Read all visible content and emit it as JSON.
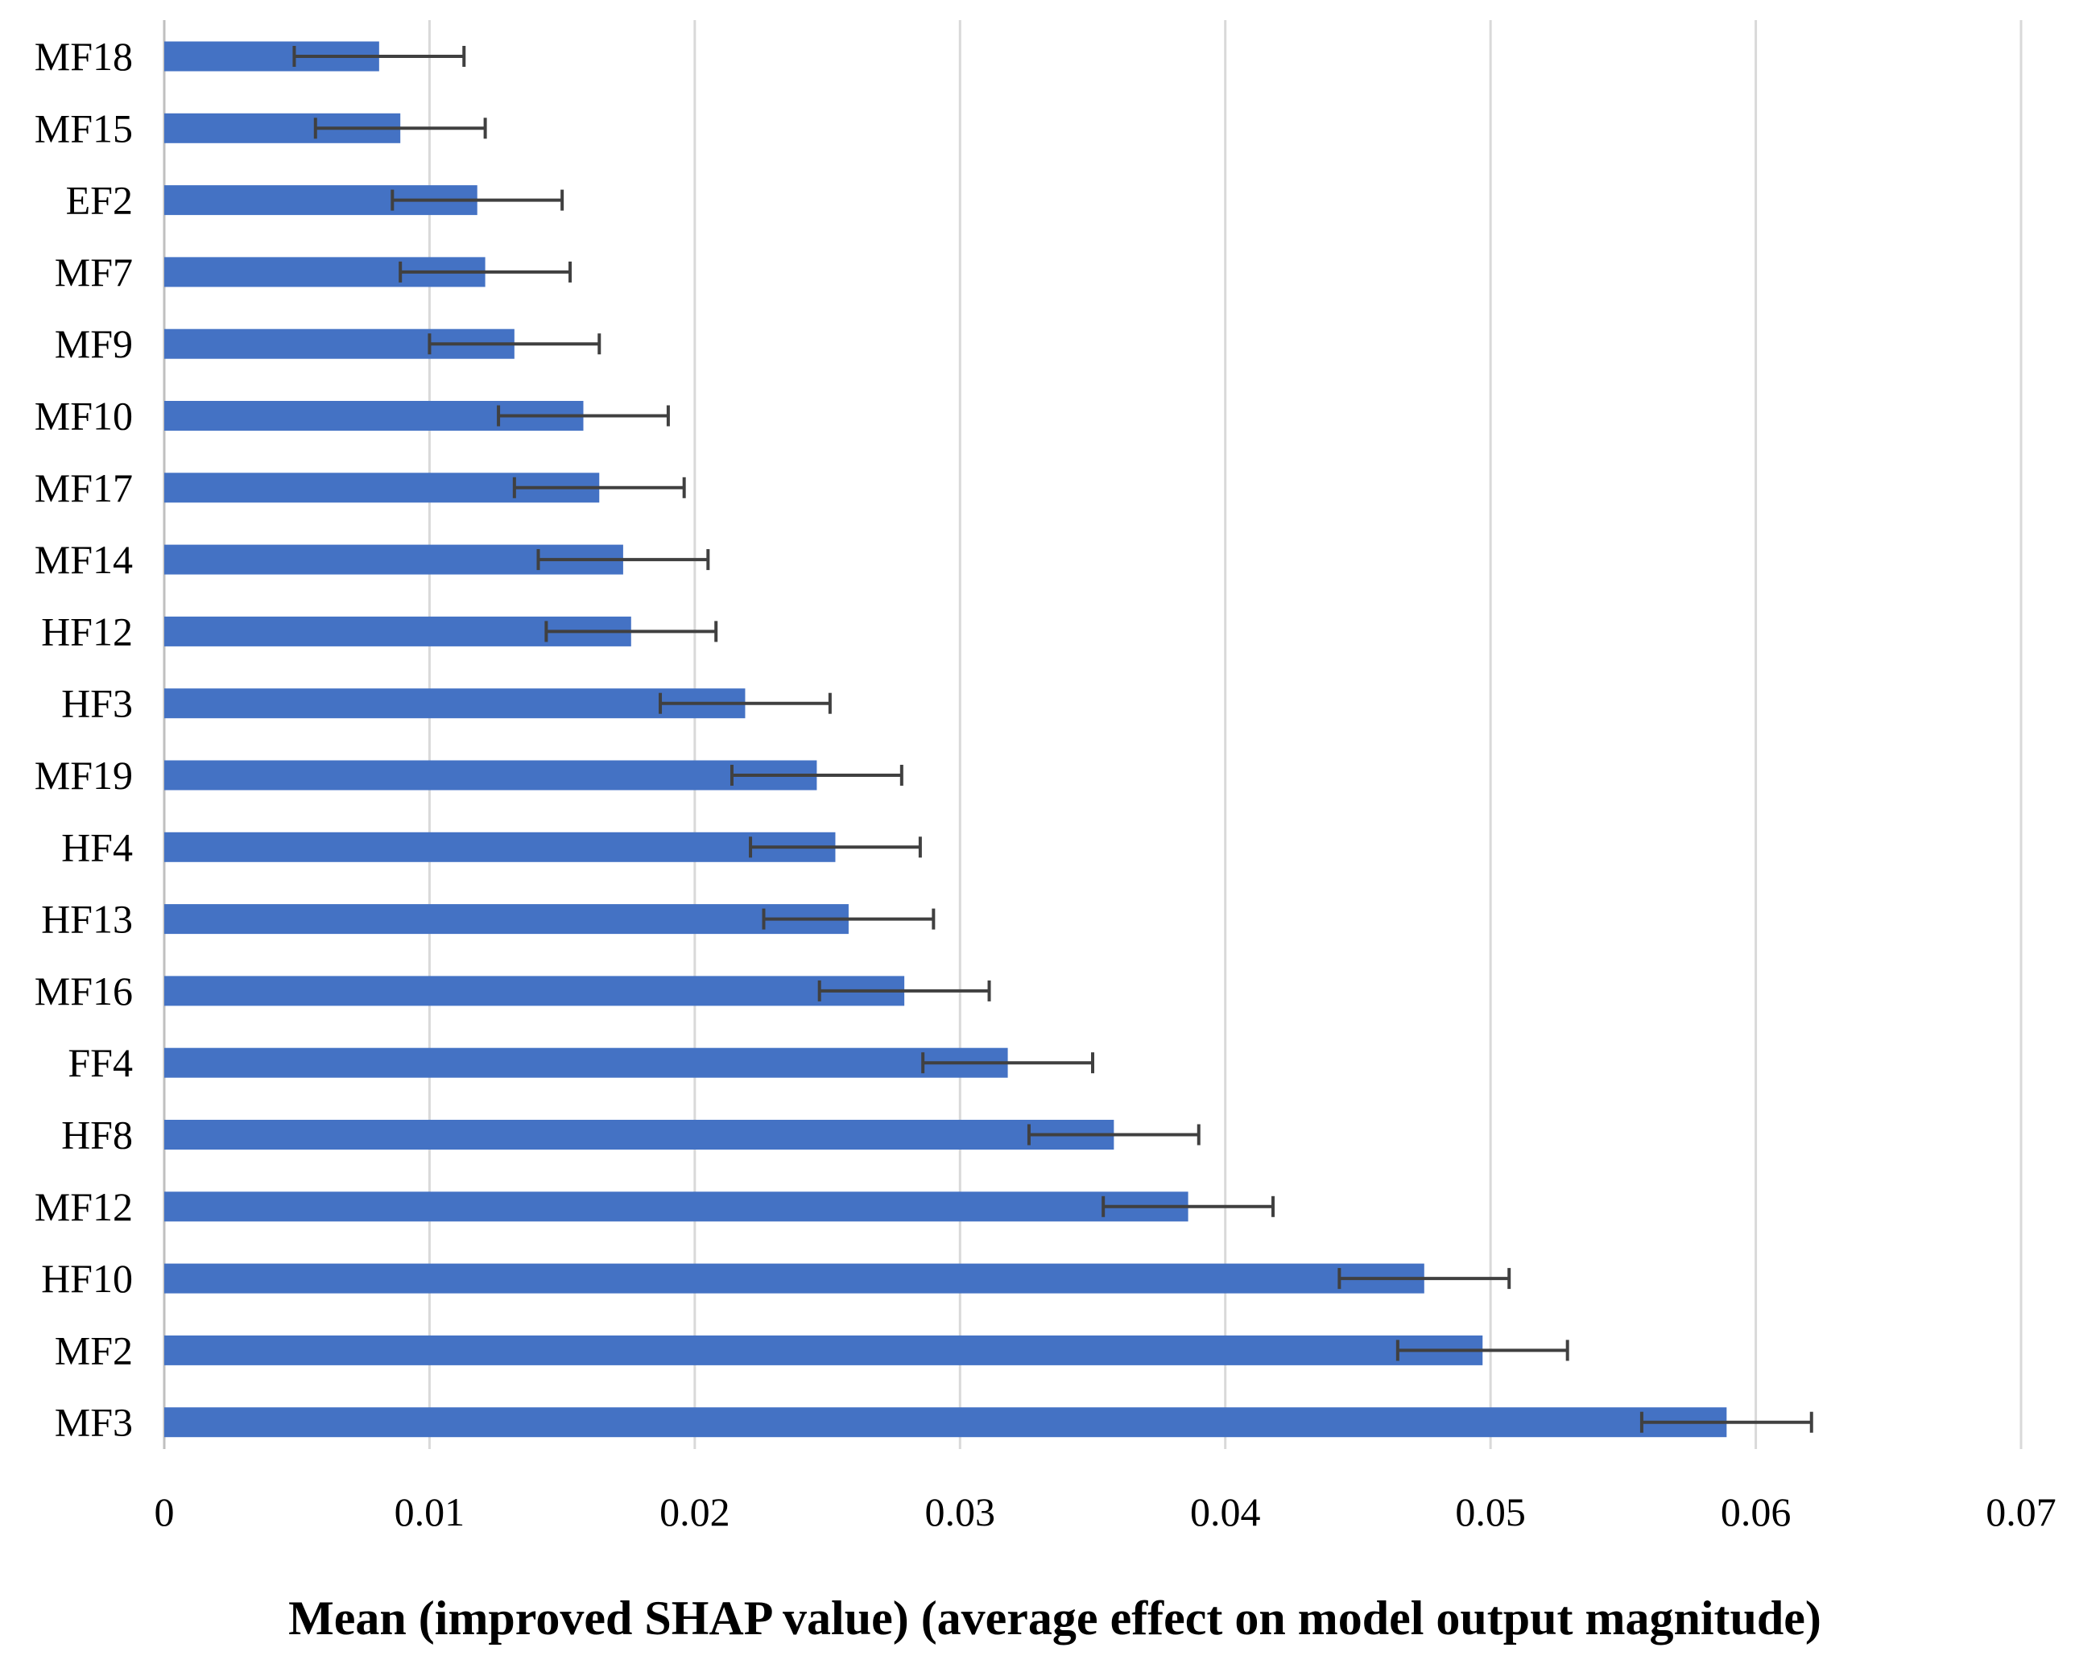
{
  "chart_data": {
    "type": "bar",
    "orientation": "horizontal",
    "title": "",
    "xlabel": "Mean (improved SHAP value) (average effect on model output magnitude)",
    "ylabel": "",
    "xlim": [
      0,
      0.07
    ],
    "xticks": [
      0,
      0.01,
      0.02,
      0.03,
      0.04,
      0.05,
      0.06,
      0.07
    ],
    "xtick_labels": [
      "0",
      "0.01",
      "0.02",
      "0.03",
      "0.04",
      "0.05",
      "0.06",
      "0.07"
    ],
    "grid": "vertical",
    "bar_color": "#4472C4",
    "error_color": "#404040",
    "categories": [
      "MF18",
      "MF15",
      "EF2",
      "MF7",
      "MF9",
      "MF10",
      "MF17",
      "MF14",
      "HF12",
      "HF3",
      "MF19",
      "HF4",
      "HF13",
      "MF16",
      "FF4",
      "HF8",
      "MF12",
      "HF10",
      "MF2",
      "MF3"
    ],
    "values": [
      0.0081,
      0.0089,
      0.0118,
      0.0121,
      0.0132,
      0.0158,
      0.0164,
      0.0173,
      0.0176,
      0.0219,
      0.0246,
      0.0253,
      0.0258,
      0.0279,
      0.0318,
      0.0358,
      0.0386,
      0.0475,
      0.0497,
      0.0589
    ],
    "error_minus": [
      0.0032,
      0.0032,
      0.0032,
      0.0032,
      0.0032,
      0.0032,
      0.0032,
      0.0032,
      0.0032,
      0.0032,
      0.0032,
      0.0032,
      0.0032,
      0.0032,
      0.0032,
      0.0032,
      0.0032,
      0.0032,
      0.0032,
      0.0032
    ],
    "error_plus": [
      0.0032,
      0.0032,
      0.0032,
      0.0032,
      0.0032,
      0.0032,
      0.0032,
      0.0032,
      0.0032,
      0.0032,
      0.0032,
      0.0032,
      0.0032,
      0.0032,
      0.0032,
      0.0032,
      0.0032,
      0.0032,
      0.0032,
      0.0032
    ]
  }
}
